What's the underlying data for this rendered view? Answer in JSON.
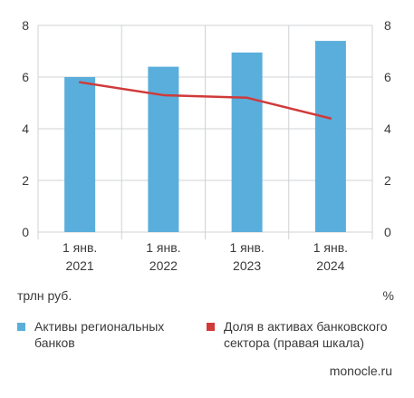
{
  "chart_data": {
    "type": "bar",
    "categories": [
      [
        "1 янв.",
        "2021"
      ],
      [
        "1 янв.",
        "2022"
      ],
      [
        "1 янв.",
        "2023"
      ],
      [
        "1 янв.",
        "2024"
      ]
    ],
    "series": [
      {
        "name": "Активы региональных банков",
        "type": "bar",
        "axis": "left",
        "color": "#5aaedb",
        "values": [
          6.0,
          6.4,
          6.95,
          7.4
        ]
      },
      {
        "name": "Доля в активах банковского сектора (правая шкала)",
        "type": "line",
        "axis": "right",
        "color": "#d03a3a",
        "values": [
          5.8,
          5.3,
          5.2,
          4.4
        ]
      }
    ],
    "ylim": [
      0,
      8
    ],
    "y2lim": [
      0,
      8
    ],
    "yticks": [
      "0",
      "2",
      "4",
      "6",
      "8"
    ],
    "y2ticks": [
      "0",
      "2",
      "4",
      "6",
      "8"
    ],
    "ylabel": "трлн руб.",
    "y2label": "%",
    "grid": true,
    "legend_position": "bottom"
  },
  "legend": {
    "bars_label": "Активы региональных банков",
    "line_label": "Доля в активах банковского сектора (правая шкала)",
    "bars_color": "#5aaedb",
    "line_color": "#d03a3a"
  },
  "source": "monocle.ru"
}
